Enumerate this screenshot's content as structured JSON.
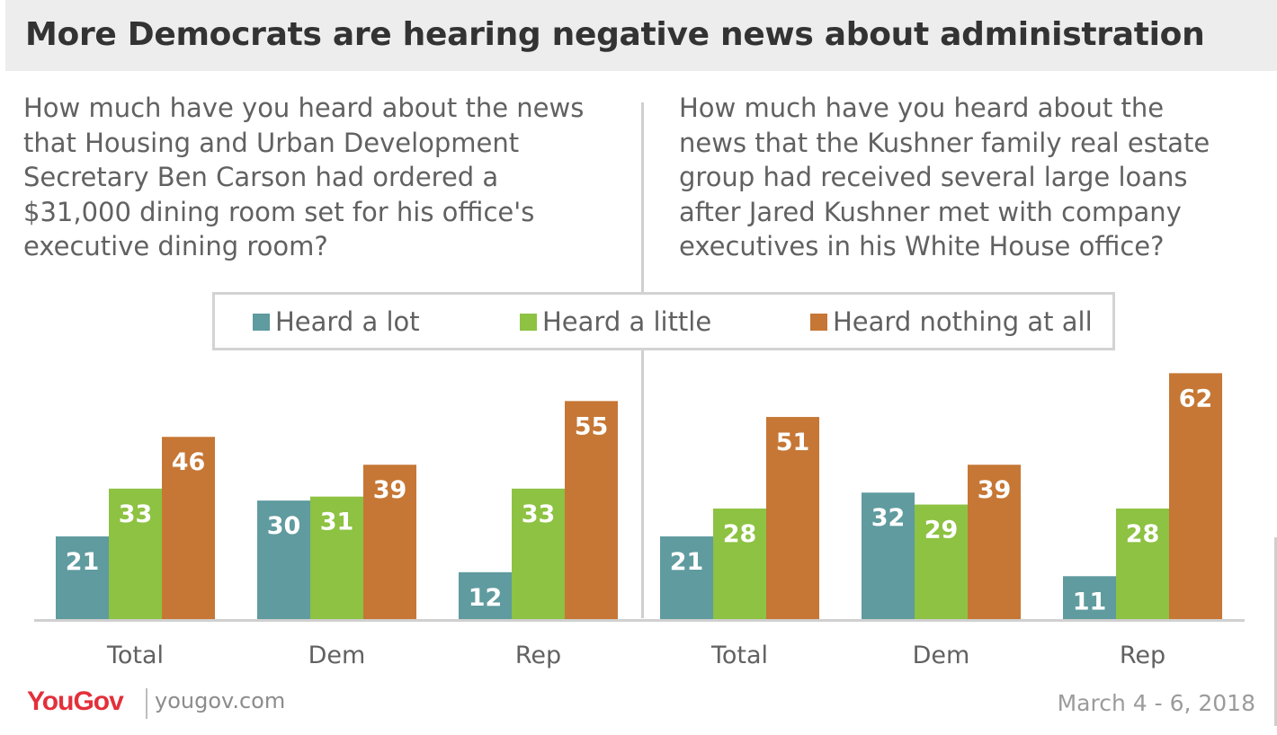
{
  "title": "More Democrats are hearing negative news about administration",
  "questions": [
    {
      "lines": [
        "How much have you heard about the news",
        "that Housing and Urban Development",
        "Secretary Ben Carson had ordered a",
        "$31,000 dining room set for his office's",
        "executive dining room?"
      ]
    },
    {
      "lines": [
        "How much have you heard about the",
        "news that the Kushner family real estate",
        "group had received several large loans",
        "after Jared Kushner met with company",
        "executives in his White House office?"
      ]
    }
  ],
  "legend": [
    {
      "label": "Heard a lot",
      "color": "#5f9b9f"
    },
    {
      "label": "Heard a little",
      "color": "#8dc242"
    },
    {
      "label": "Heard nothing at all",
      "color": "#c67735"
    }
  ],
  "chart_data": [
    {
      "type": "bar",
      "title": "How much have you heard about the news that Housing and Urban Development Secretary Ben Carson had ordered a $31,000 dining room set for his office's executive dining room?",
      "categories": [
        "Total",
        "Dem",
        "Rep"
      ],
      "series": [
        {
          "name": "Heard a lot",
          "values": [
            21,
            30,
            12
          ]
        },
        {
          "name": "Heard a little",
          "values": [
            33,
            31,
            33
          ]
        },
        {
          "name": "Heard nothing at all",
          "values": [
            46,
            39,
            55
          ]
        }
      ],
      "ylim": [
        0,
        62
      ],
      "grid": false,
      "legend": "top-center"
    },
    {
      "type": "bar",
      "title": "How much have you heard about the news that the Kushner family real estate group had received several large loans after Jared Kushner met with company executives in his White House office?",
      "categories": [
        "Total",
        "Dem",
        "Rep"
      ],
      "series": [
        {
          "name": "Heard a lot",
          "values": [
            21,
            32,
            11
          ]
        },
        {
          "name": "Heard a little",
          "values": [
            28,
            29,
            28
          ]
        },
        {
          "name": "Heard nothing at all",
          "values": [
            51,
            39,
            62
          ]
        }
      ],
      "ylim": [
        0,
        62
      ],
      "grid": false,
      "legend": "top-center"
    }
  ],
  "footer": {
    "logo_you": "You",
    "logo_gov": "Gov",
    "site": "yougov.com",
    "date": "March 4 - 6, 2018"
  }
}
